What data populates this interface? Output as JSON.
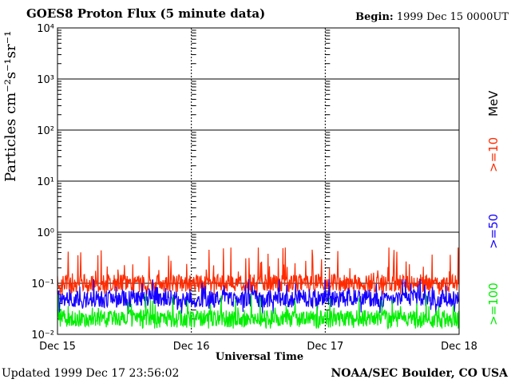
{
  "header": {
    "title": "GOES8 Proton Flux (5 minute data)",
    "begin_label": "Begin:",
    "begin_value": "1999 Dec 15 0000UT"
  },
  "footer": {
    "updated": "Updated 1999 Dec 17 23:56:02",
    "credit": "NOAA/SEC Boulder, CO USA"
  },
  "chart_data": {
    "type": "line",
    "title": "GOES8 Proton Flux (5 minute data)",
    "xlabel": "Universal Time",
    "ylabel": "Particles cm⁻²s⁻¹sr⁻¹",
    "yscale": "log",
    "ylim": [
      0.01,
      10000
    ],
    "y_ticks": [
      "10⁻²",
      "10⁻¹",
      "10⁰",
      "10¹",
      "10²",
      "10³",
      "10⁴"
    ],
    "x_ticks": [
      "Dec 15",
      "Dec 16",
      "Dec 17",
      "Dec 18"
    ],
    "xlim": [
      "1999-12-15 00:00",
      "1999-12-18 00:00"
    ],
    "data_ends_at": "1999-12-17 23:55",
    "grid": true,
    "legend_position": "right",
    "legend_unit": "MeV",
    "series": [
      {
        "name": ">=10",
        "color": "#ff2a00",
        "baseline": 0.1,
        "range": [
          0.06,
          0.5
        ]
      },
      {
        "name": ">=50",
        "color": "#1400ff",
        "baseline": 0.05,
        "range": [
          0.025,
          0.12
        ]
      },
      {
        "name": ">=100",
        "color": "#00ee00",
        "baseline": 0.02,
        "range": [
          0.013,
          0.06
        ]
      }
    ]
  }
}
